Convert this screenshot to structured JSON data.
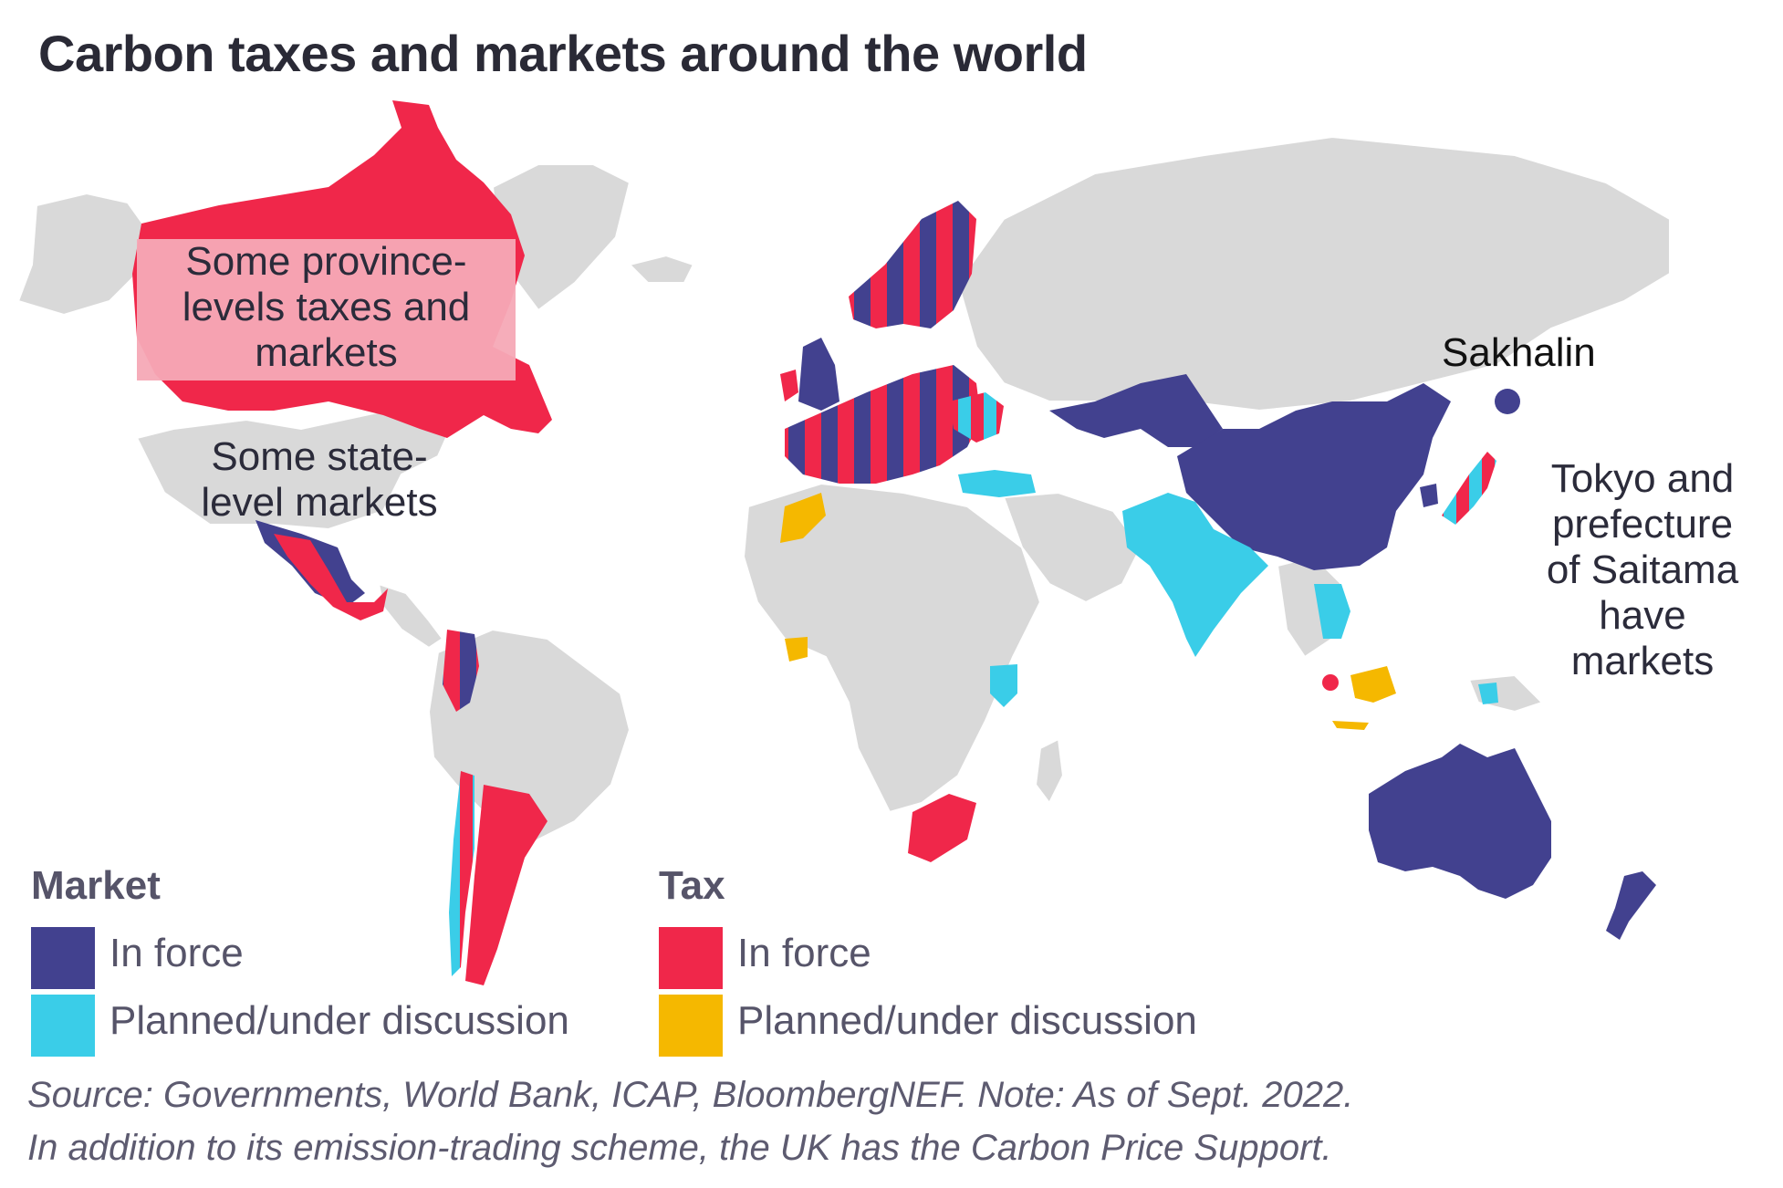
{
  "title": "Carbon taxes and markets around the world",
  "colors": {
    "market_in_force": "#42418f",
    "market_planned": "#3acde8",
    "tax_in_force": "#f0274a",
    "tax_planned": "#f5b800",
    "no_pricing": "#d9d9d9",
    "province_overlay": "#f6a9b6"
  },
  "annotations": {
    "canada_line1": "Some province-",
    "canada_line2": "levels taxes and",
    "canada_line3": "markets",
    "usa_line1": "Some state-",
    "usa_line2": "level markets",
    "sakhalin": "Sakhalin",
    "tokyo_line1": "Tokyo and",
    "tokyo_line2": "prefecture",
    "tokyo_line3": "of Saitama",
    "tokyo_line4": "have",
    "tokyo_line5": "markets"
  },
  "legend": {
    "market": {
      "heading": "Market",
      "in_force": "In force",
      "planned": "Planned/under discussion"
    },
    "tax": {
      "heading": "Tax",
      "in_force": "In force",
      "planned": "Planned/under discussion"
    }
  },
  "source": {
    "line1": "Source: Governments, World Bank, ICAP, BloombergNEF. Note: As of Sept. 2022.",
    "line2": "In addition to its emission-trading scheme, the UK has the Carbon Price Support."
  }
}
